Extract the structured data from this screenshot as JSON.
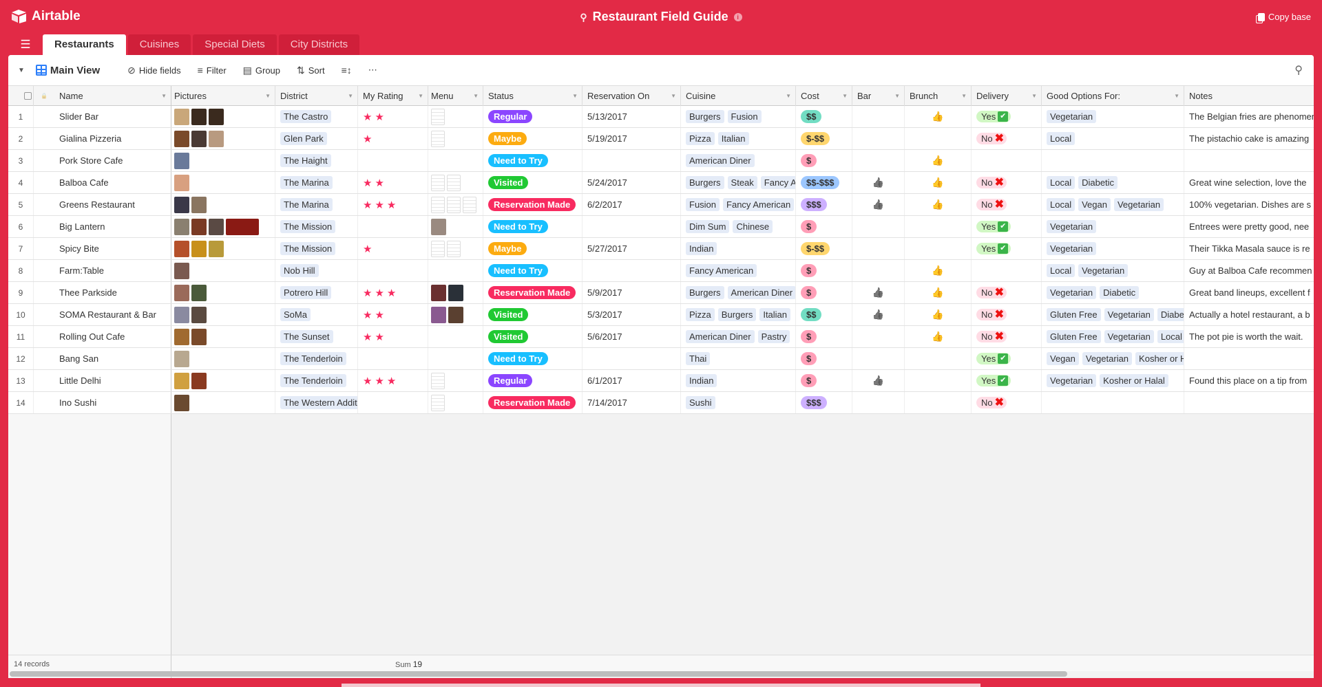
{
  "app": {
    "brand": "Airtable",
    "base_title": "Restaurant Field Guide",
    "copy_base": "Copy base"
  },
  "colors": {
    "header": "#e22a46",
    "accent": "#2d7ff9"
  },
  "tabs": [
    {
      "label": "Restaurants",
      "active": true
    },
    {
      "label": "Cuisines"
    },
    {
      "label": "Special Diets"
    },
    {
      "label": "City Districts"
    }
  ],
  "toolbar": {
    "view_name": "Main View",
    "hide_fields": "Hide fields",
    "filter": "Filter",
    "group": "Group",
    "sort": "Sort",
    "more": "⋯"
  },
  "columns": [
    "Name",
    "Pictures",
    "District",
    "My Rating",
    "Menu",
    "Status",
    "Reservation On",
    "Cuisine",
    "Cost",
    "Bar",
    "Brunch",
    "Delivery",
    "Good Options For:",
    "Notes"
  ],
  "status_colors": {
    "Regular": "#8b46ff",
    "Maybe": "#fcab10",
    "Need to Try": "#18bfff",
    "Visited": "#20c933",
    "Reservation Made": "#f82b60"
  },
  "cost_colors": {
    "$": "#ff9eb7",
    "$$": "#72ddc3",
    "$-$$": "#ffd66e",
    "$$-$$$": "#9cc7ff",
    "$$$": "#cdb0ff"
  },
  "rows": [
    {
      "num": "1",
      "name": "Slider Bar",
      "pictures": [
        "#c9a77a",
        "#3a2a1e",
        "#3a2a1e"
      ],
      "district": "The Castro",
      "rating": 2,
      "menu": [
        "doc"
      ],
      "status": "Regular",
      "reservation": "5/13/2017",
      "cuisine": [
        "Burgers",
        "Fusion"
      ],
      "cost": "$$",
      "bar": false,
      "brunch": true,
      "delivery": "Yes",
      "good_for": [
        "Vegetarian"
      ],
      "notes": "The Belgian fries are phenomenal"
    },
    {
      "num": "2",
      "name": "Gialina Pizzeria",
      "pictures": [
        "#7a4a2a",
        "#4a3a34",
        "#b89a80"
      ],
      "district": "Glen Park",
      "rating": 1,
      "menu": [
        "doc"
      ],
      "status": "Maybe",
      "reservation": "5/19/2017",
      "cuisine": [
        "Pizza",
        "Italian"
      ],
      "cost": "$-$$",
      "bar": false,
      "brunch": false,
      "delivery": "No",
      "good_for": [
        "Local"
      ],
      "notes": "The pistachio cake is amazing"
    },
    {
      "num": "3",
      "name": "Pork Store Cafe",
      "pictures": [
        "#6a7a9a"
      ],
      "district": "The Haight",
      "rating": 0,
      "menu": [],
      "status": "Need to Try",
      "reservation": "",
      "cuisine": [
        "American Diner"
      ],
      "cost": "$",
      "bar": false,
      "brunch": true,
      "delivery": "",
      "good_for": [],
      "notes": ""
    },
    {
      "num": "4",
      "name": "Balboa Cafe",
      "pictures": [
        "#d8a080"
      ],
      "district": "The Marina",
      "rating": 2,
      "menu": [
        "doc",
        "doc"
      ],
      "status": "Visited",
      "reservation": "5/24/2017",
      "cuisine": [
        "Burgers",
        "Steak",
        "Fancy American"
      ],
      "cost": "$$-$$$",
      "bar": true,
      "brunch": true,
      "delivery": "No",
      "good_for": [
        "Local",
        "Diabetic"
      ],
      "notes": "Great wine selection, love the"
    },
    {
      "num": "5",
      "name": "Greens Restaurant",
      "pictures": [
        "#3a3848",
        "#8a7560"
      ],
      "district": "The Marina",
      "rating": 3,
      "menu": [
        "doc",
        "doc",
        "doc"
      ],
      "status": "Reservation Made",
      "reservation": "6/2/2017",
      "cuisine": [
        "Fusion",
        "Fancy American"
      ],
      "cost": "$$$",
      "bar": true,
      "brunch": true,
      "delivery": "No",
      "good_for": [
        "Local",
        "Vegan",
        "Vegetarian"
      ],
      "notes": "100% vegetarian. Dishes are s"
    },
    {
      "num": "6",
      "name": "Big Lantern",
      "pictures": [
        "#8a8070",
        "#7a3a24",
        "#5a4a44",
        "#8a1a14"
      ],
      "district": "The Mission",
      "rating": 0,
      "menu": [
        "#9a8a80"
      ],
      "status": "Need to Try",
      "reservation": "",
      "cuisine": [
        "Dim Sum",
        "Chinese"
      ],
      "cost": "$",
      "bar": false,
      "brunch": false,
      "delivery": "Yes",
      "good_for": [
        "Vegetarian"
      ],
      "notes": "Entrees were pretty good, nee"
    },
    {
      "num": "7",
      "name": "Spicy Bite",
      "pictures": [
        "#b5502a",
        "#c8901a",
        "#b89a3a"
      ],
      "district": "The Mission",
      "rating": 1,
      "menu": [
        "doc",
        "doc"
      ],
      "status": "Maybe",
      "reservation": "5/27/2017",
      "cuisine": [
        "Indian"
      ],
      "cost": "$-$$",
      "bar": false,
      "brunch": false,
      "delivery": "Yes",
      "good_for": [
        "Vegetarian"
      ],
      "notes": "Their Tikka Masala sauce is re"
    },
    {
      "num": "8",
      "name": "Farm:Table",
      "pictures": [
        "#7a5a50"
      ],
      "district": "Nob Hill",
      "rating": 0,
      "menu": [],
      "status": "Need to Try",
      "reservation": "",
      "cuisine": [
        "Fancy American"
      ],
      "cost": "$",
      "bar": false,
      "brunch": true,
      "delivery": "",
      "good_for": [
        "Local",
        "Vegetarian"
      ],
      "notes": "Guy at Balboa Cafe recommen"
    },
    {
      "num": "9",
      "name": "Thee Parkside",
      "pictures": [
        "#9a6a5a",
        "#4a5a3a"
      ],
      "district": "Potrero Hill",
      "rating": 3,
      "menu": [
        "#6a3030",
        "#2a3038"
      ],
      "status": "Reservation Made",
      "reservation": "5/9/2017",
      "cuisine": [
        "Burgers",
        "American Diner"
      ],
      "cost": "$",
      "bar": true,
      "brunch": true,
      "delivery": "No",
      "good_for": [
        "Vegetarian",
        "Diabetic"
      ],
      "notes": "Great band lineups, excellent f"
    },
    {
      "num": "10",
      "name": "SOMA Restaurant & Bar",
      "pictures": [
        "#8a8aa0",
        "#5a4a40"
      ],
      "district": "SoMa",
      "rating": 2,
      "menu": [
        "#8a5a90",
        "#5a4030"
      ],
      "status": "Visited",
      "reservation": "5/3/2017",
      "cuisine": [
        "Pizza",
        "Burgers",
        "Italian"
      ],
      "cost": "$$",
      "bar": true,
      "brunch": true,
      "delivery": "No",
      "good_for": [
        "Gluten Free",
        "Vegetarian",
        "Diabetic"
      ],
      "notes": "Actually a hotel restaurant, a b"
    },
    {
      "num": "11",
      "name": "Rolling Out Cafe",
      "pictures": [
        "#a06a30",
        "#7a4a2a"
      ],
      "district": "The Sunset",
      "rating": 2,
      "menu": [],
      "status": "Visited",
      "reservation": "5/6/2017",
      "cuisine": [
        "American Diner",
        "Pastry"
      ],
      "cost": "$",
      "bar": false,
      "brunch": true,
      "delivery": "No",
      "good_for": [
        "Gluten Free",
        "Vegetarian",
        "Local"
      ],
      "notes": "The pot pie is worth the wait."
    },
    {
      "num": "12",
      "name": "Bang San",
      "pictures": [
        "#b8a890"
      ],
      "district": "The Tenderloin",
      "rating": 0,
      "menu": [],
      "status": "Need to Try",
      "reservation": "",
      "cuisine": [
        "Thai"
      ],
      "cost": "$",
      "bar": false,
      "brunch": false,
      "delivery": "Yes",
      "good_for": [
        "Vegan",
        "Vegetarian",
        "Kosher or Halal"
      ],
      "notes": ""
    },
    {
      "num": "13",
      "name": "Little Delhi",
      "pictures": [
        "#d0a040",
        "#8a3a20"
      ],
      "district": "The Tenderloin",
      "rating": 3,
      "menu": [
        "doc"
      ],
      "status": "Regular",
      "reservation": "6/1/2017",
      "cuisine": [
        "Indian"
      ],
      "cost": "$",
      "bar": true,
      "brunch": false,
      "delivery": "Yes",
      "good_for": [
        "Vegetarian",
        "Kosher or Halal"
      ],
      "notes": "Found this place on a tip from"
    },
    {
      "num": "14",
      "name": "Ino Sushi",
      "pictures": [
        "#6a4a30"
      ],
      "district": "The Western Addition",
      "rating": 0,
      "menu": [
        "doc"
      ],
      "status": "Reservation Made",
      "reservation": "7/14/2017",
      "cuisine": [
        "Sushi"
      ],
      "cost": "$$$",
      "bar": false,
      "brunch": false,
      "delivery": "No",
      "good_for": [],
      "notes": ""
    }
  ],
  "footer": {
    "records": "14 records",
    "sum_label": "Sum",
    "sum_value": "19"
  }
}
